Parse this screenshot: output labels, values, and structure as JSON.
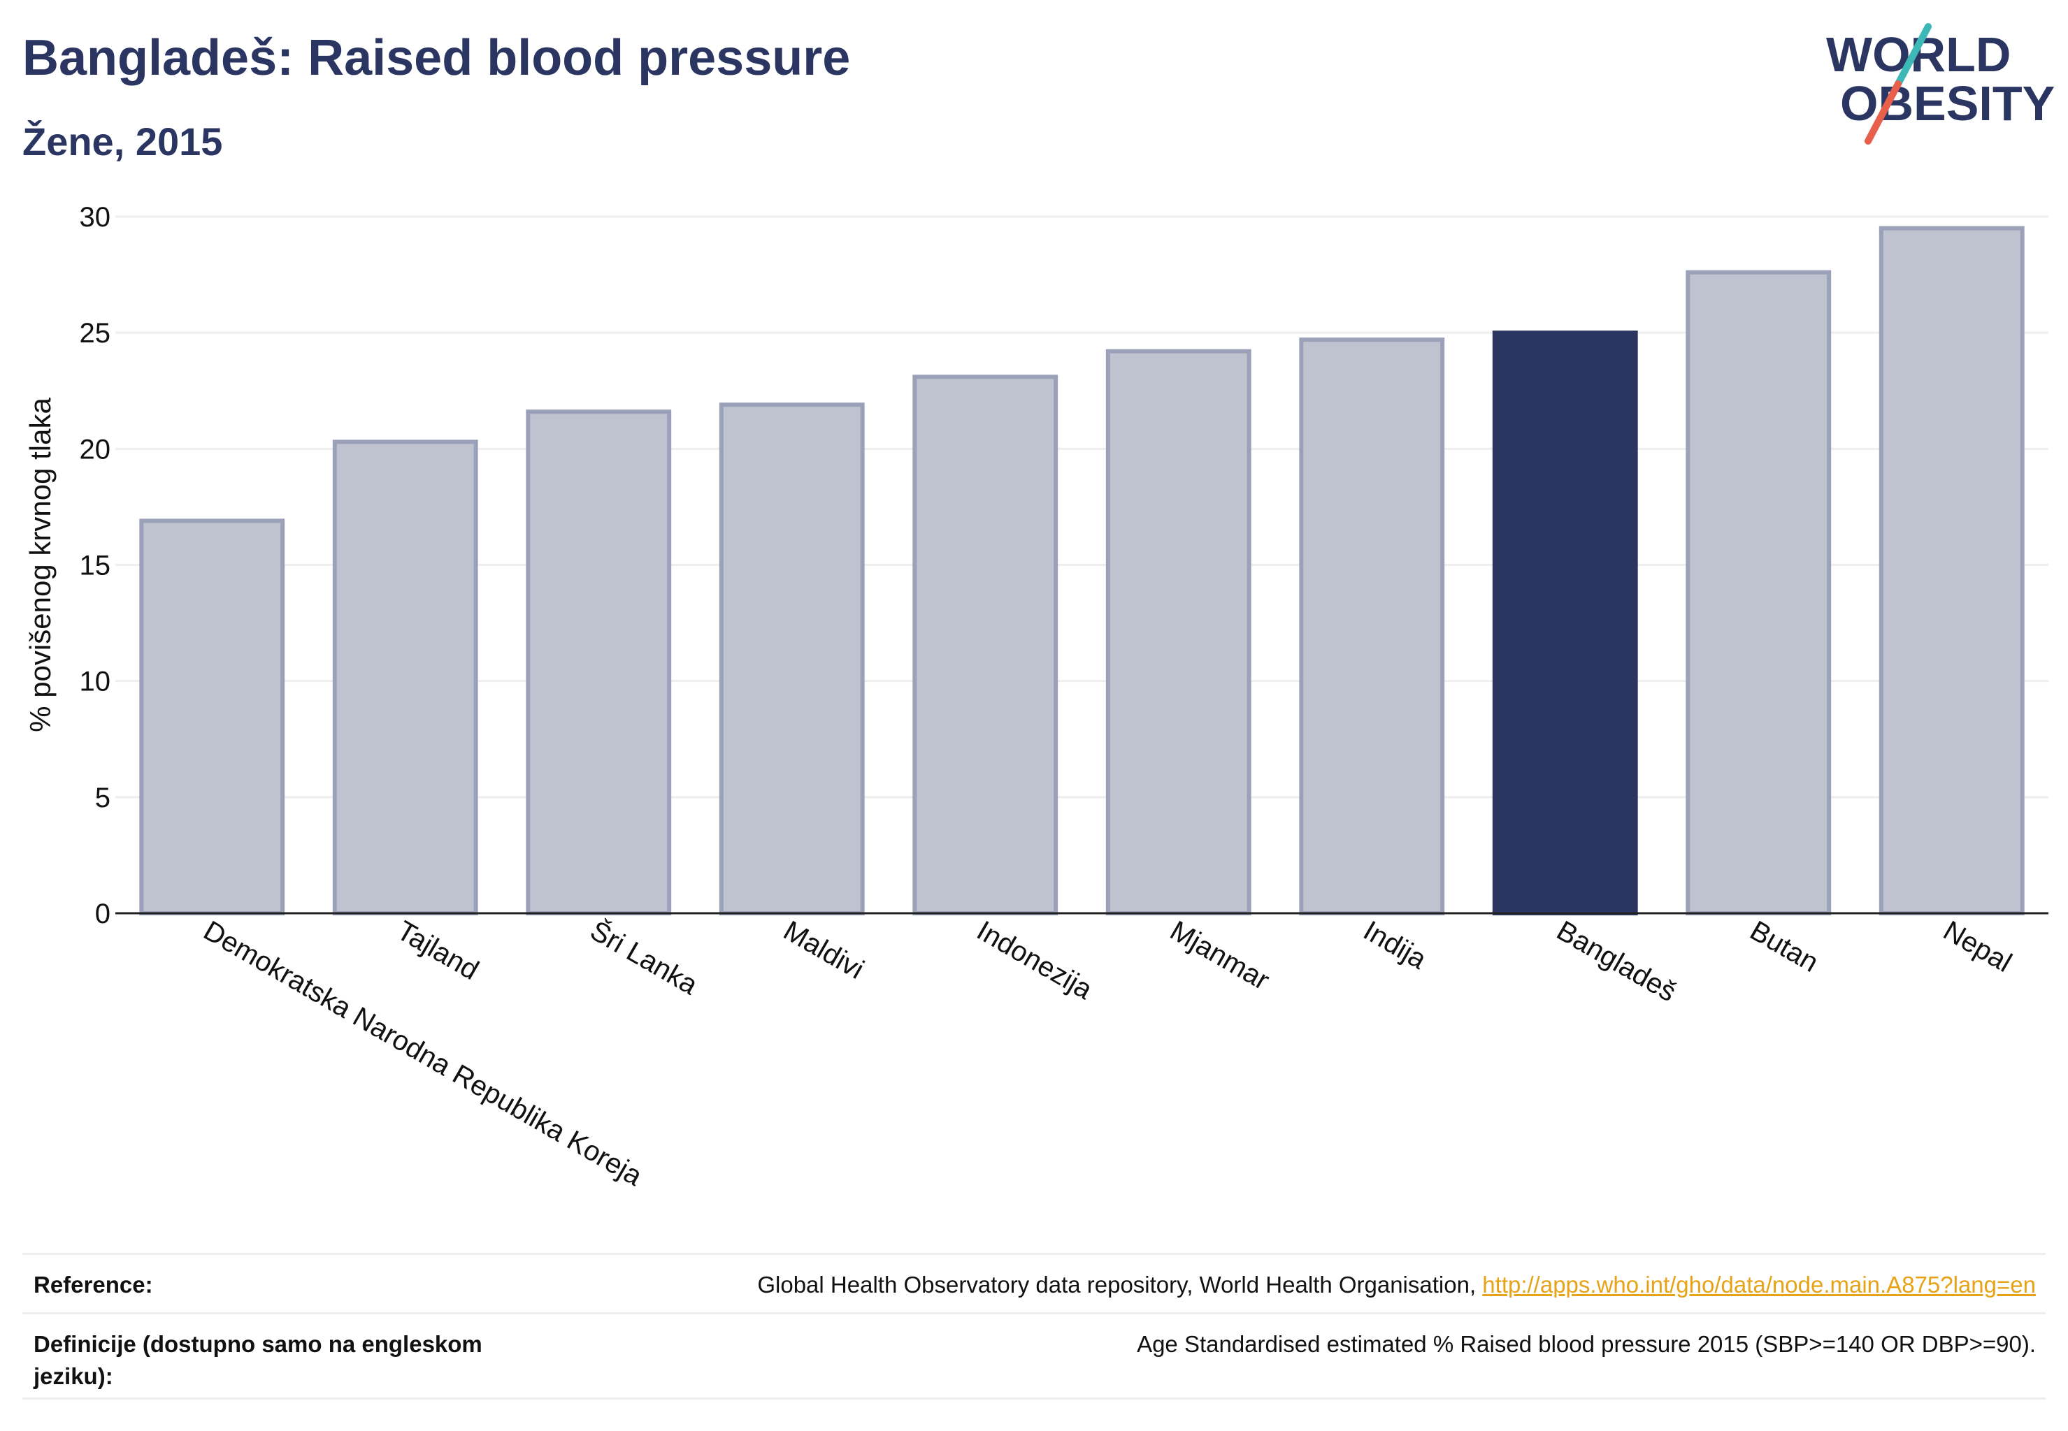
{
  "header": {
    "title": "Bangladeš: Raised blood pressure",
    "subtitle": "Žene, 2015"
  },
  "logo": {
    "line1": "WORLD",
    "line2": "OBESITY",
    "colors": {
      "text": "#2b3561",
      "slash_top": "#3cb8b6",
      "slash_bottom": "#e8604c"
    }
  },
  "colors": {
    "bar_default": "#bfc3d0",
    "bar_default_stroke": "#9ba1b9",
    "bar_highlight": "#2b3561",
    "grid": "#eeeeee",
    "axis": "#222222",
    "text": "#111111"
  },
  "chart_data": {
    "type": "bar",
    "categories": [
      "Demokratska Narodna Republika Koreja",
      "Tajland",
      "Šri Lanka",
      "Maldivi",
      "Indonezija",
      "Mjanmar",
      "Indija",
      "Bangladeš",
      "Butan",
      "Nepal"
    ],
    "values": [
      16.9,
      20.3,
      21.6,
      21.9,
      23.1,
      24.2,
      24.7,
      25.0,
      27.6,
      29.5
    ],
    "highlight": "Bangladeš",
    "ylabel": "% povišenog krvnog tlaka",
    "xlabel": "",
    "ylim": [
      0,
      30
    ],
    "yticks": [
      0,
      5,
      10,
      15,
      20,
      25,
      30
    ],
    "grid": true
  },
  "footer": {
    "reference_label": "Reference:",
    "reference_text": "Global Health Observatory data repository, World Health Organisation, ",
    "reference_link": "http://apps.who.int/gho/data/node.main.A875?lang=en",
    "definition_label": "Definicije (dostupno samo na engleskom jeziku):",
    "definition_text": "Age Standardised estimated % Raised blood pressure 2015 (SBP>=140 OR DBP>=90)."
  }
}
